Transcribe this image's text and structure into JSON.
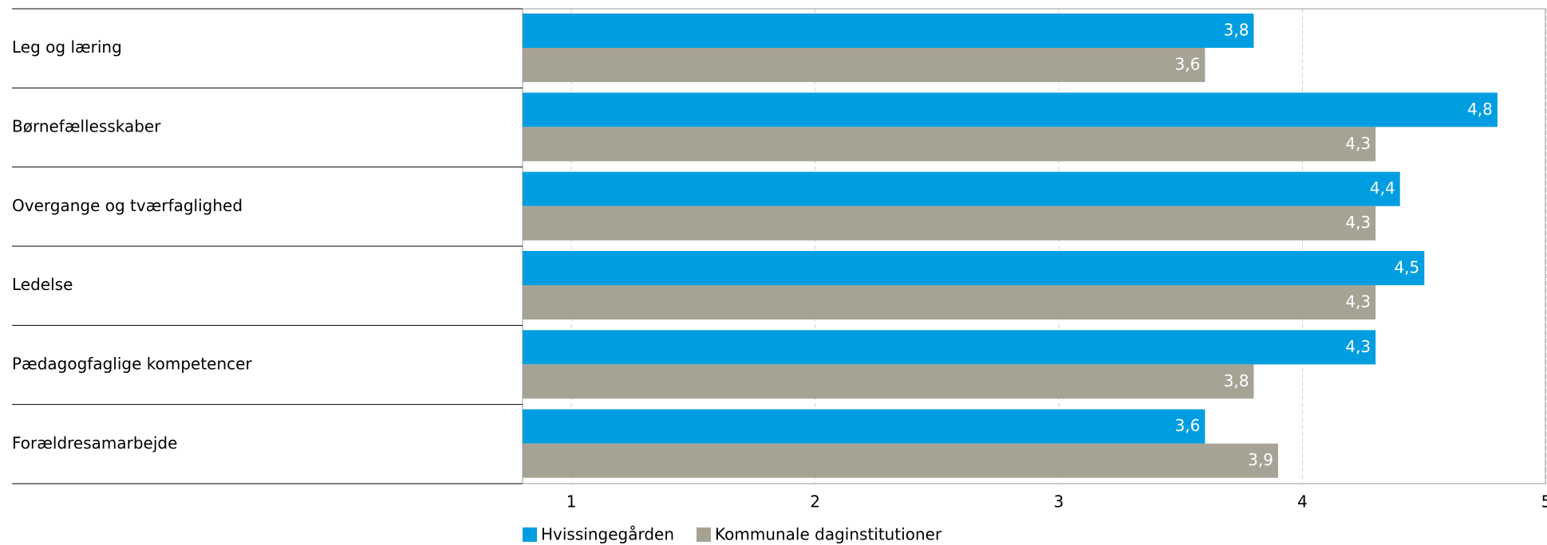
{
  "chart_data": {
    "type": "bar",
    "orientation": "horizontal",
    "categories": [
      "Leg og læring",
      "Børnefællesskaber",
      "Overgange og tværfaglighed",
      "Ledelse",
      "Pædagogfaglige kompetencer",
      "Forældresamarbejde"
    ],
    "series": [
      {
        "name": "Hvissingegården",
        "color": "#009ee0",
        "values": [
          3.8,
          4.8,
          4.4,
          4.5,
          4.3,
          3.6
        ],
        "value_labels": [
          "3,8",
          "4,8",
          "4,4",
          "4,5",
          "4,3",
          "3,6"
        ]
      },
      {
        "name": "Kommunale daginstitutioner",
        "color": "#a6a395",
        "values": [
          3.6,
          4.3,
          4.3,
          4.3,
          3.8,
          3.9
        ],
        "value_labels": [
          "3,6",
          "4,3",
          "4,3",
          "4,3",
          "3,8",
          "3,9"
        ]
      }
    ],
    "xlim": [
      0.8,
      5
    ],
    "xticks": [
      1,
      2,
      3,
      4,
      5
    ],
    "grid": true,
    "legend": "bottom"
  }
}
